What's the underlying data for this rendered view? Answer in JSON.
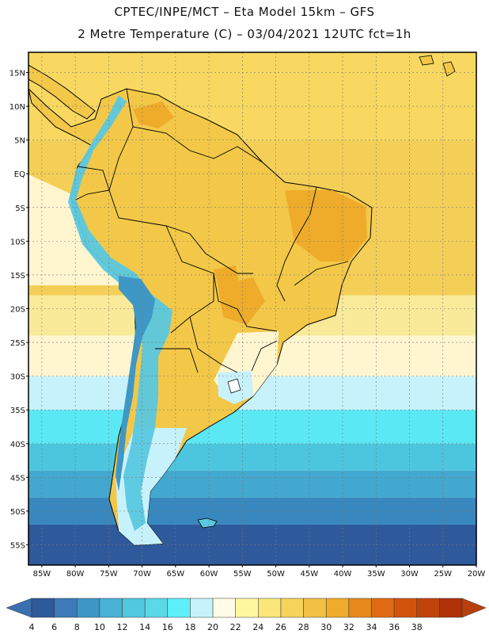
{
  "header": {
    "title_line1": "CPTEC/INPE/MCT –  Eta Model 15km – GFS",
    "title_line2": "2 Metre Temperature (C) – 03/04/2021 12UTC fct=1h"
  },
  "axes": {
    "lat_labels": [
      "15N",
      "10N",
      "5N",
      "EQ",
      "5S",
      "10S",
      "15S",
      "20S",
      "25S",
      "30S",
      "35S",
      "40S",
      "45S",
      "50S",
      "55S"
    ],
    "lon_labels": [
      "85W",
      "80W",
      "75W",
      "70W",
      "65W",
      "60W",
      "55W",
      "50W",
      "45W",
      "40W",
      "35W",
      "30W",
      "25W",
      "20W"
    ]
  },
  "colorbar": {
    "ticks": [
      "4",
      "6",
      "8",
      "10",
      "12",
      "14",
      "16",
      "18",
      "20",
      "22",
      "24",
      "26",
      "28",
      "30",
      "32",
      "34",
      "36",
      "38"
    ],
    "colors": [
      "#2e5a9c",
      "#3c7ab8",
      "#3f97c6",
      "#49b2d6",
      "#52c8df",
      "#5ad8e6",
      "#5df0f8",
      "#c8f2fb",
      "#fffbe6",
      "#fff7a0",
      "#fbe67a",
      "#f6d35a",
      "#f1c044",
      "#eeac2a",
      "#e68a1e",
      "#e06a14",
      "#d2540c",
      "#c0430a",
      "#b03208"
    ],
    "under_color": "#3a6fb0",
    "over_color": "#b8400c"
  },
  "map": {
    "ocean_bands": [
      {
        "lat_top": 18,
        "lat_bottom": 5,
        "color": "#f8d860"
      },
      {
        "lat_top": 5,
        "lat_bottom": -18,
        "color": "#f4cf58"
      },
      {
        "lat_top": -18,
        "lat_bottom": -24,
        "color": "#f9ea9a"
      },
      {
        "lat_top": -24,
        "lat_bottom": -30,
        "color": "#fff6d0"
      },
      {
        "lat_top": -30,
        "lat_bottom": -35,
        "color": "#c8f2fb"
      },
      {
        "lat_top": -35,
        "lat_bottom": -40,
        "color": "#5ae8f4"
      },
      {
        "lat_top": -40,
        "lat_bottom": -44,
        "color": "#4cc6de"
      },
      {
        "lat_top": -44,
        "lat_bottom": -48,
        "color": "#42a8cf"
      },
      {
        "lat_top": -48,
        "lat_bottom": -52,
        "color": "#3888bf"
      },
      {
        "lat_top": -52,
        "lat_bottom": -60,
        "color": "#2e5a9c"
      }
    ],
    "land_color": "#f3c848",
    "hot_color": "#eeac2a",
    "andes_color": "#5ac8e0",
    "andes_cold_color": "#3f97c6"
  }
}
